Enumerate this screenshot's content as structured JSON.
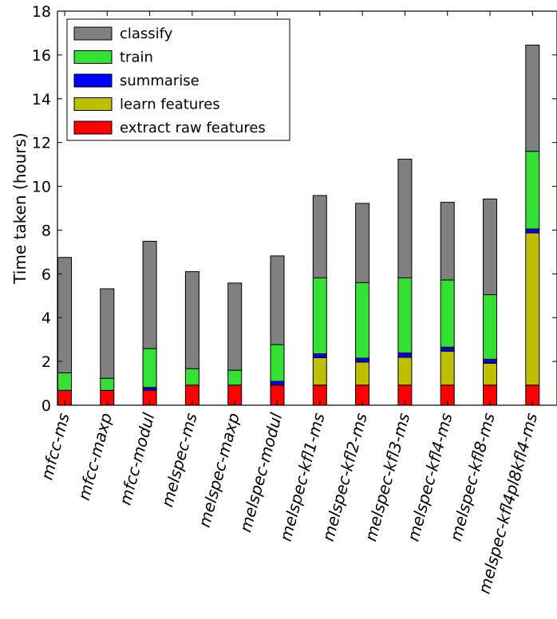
{
  "chart_data": {
    "type": "bar",
    "stacked": true,
    "title": "",
    "xlabel": "",
    "ylabel": "Time taken (hours)",
    "ylim": [
      0,
      18
    ],
    "yticks": [
      0,
      2,
      4,
      6,
      8,
      10,
      12,
      14,
      16,
      18
    ],
    "grid": false,
    "legend_position": "top-left",
    "categories": [
      "mfcc-ms",
      "mfcc-maxp",
      "mfcc-modul",
      "melspec-ms",
      "melspec-maxp",
      "melspec-modul",
      "melspec-kfl1-ms",
      "melspec-kfl2-ms",
      "melspec-kfl3-ms",
      "melspec-kfl4-ms",
      "melspec-kfl8-ms",
      "melspec-kfl4pl8kfl4-ms"
    ],
    "series": [
      {
        "name": "extract raw features",
        "color": "#ff0000",
        "values": [
          0.68,
          0.68,
          0.68,
          0.92,
          0.92,
          0.92,
          0.92,
          0.92,
          0.92,
          0.92,
          0.92,
          0.92
        ]
      },
      {
        "name": "learn features",
        "color": "#bfbf00",
        "values": [
          0,
          0,
          0,
          0,
          0,
          0,
          1.25,
          1.05,
          1.27,
          1.55,
          1.0,
          6.95
        ]
      },
      {
        "name": "summarise",
        "color": "#0000ff",
        "values": [
          0,
          0,
          0.13,
          0,
          0,
          0.17,
          0.18,
          0.18,
          0.2,
          0.18,
          0.18,
          0.18
        ]
      },
      {
        "name": "train",
        "color": "#33e033",
        "values": [
          0.8,
          0.55,
          1.78,
          0.75,
          0.68,
          1.68,
          3.47,
          3.45,
          3.43,
          3.07,
          2.95,
          3.55
        ]
      },
      {
        "name": "classify",
        "color": "#808080",
        "values": [
          5.27,
          4.09,
          4.9,
          4.43,
          3.98,
          4.05,
          3.76,
          3.62,
          5.42,
          3.55,
          4.37,
          4.85
        ]
      }
    ],
    "legend_order": [
      "classify",
      "train",
      "summarise",
      "learn features",
      "extract raw features"
    ]
  }
}
